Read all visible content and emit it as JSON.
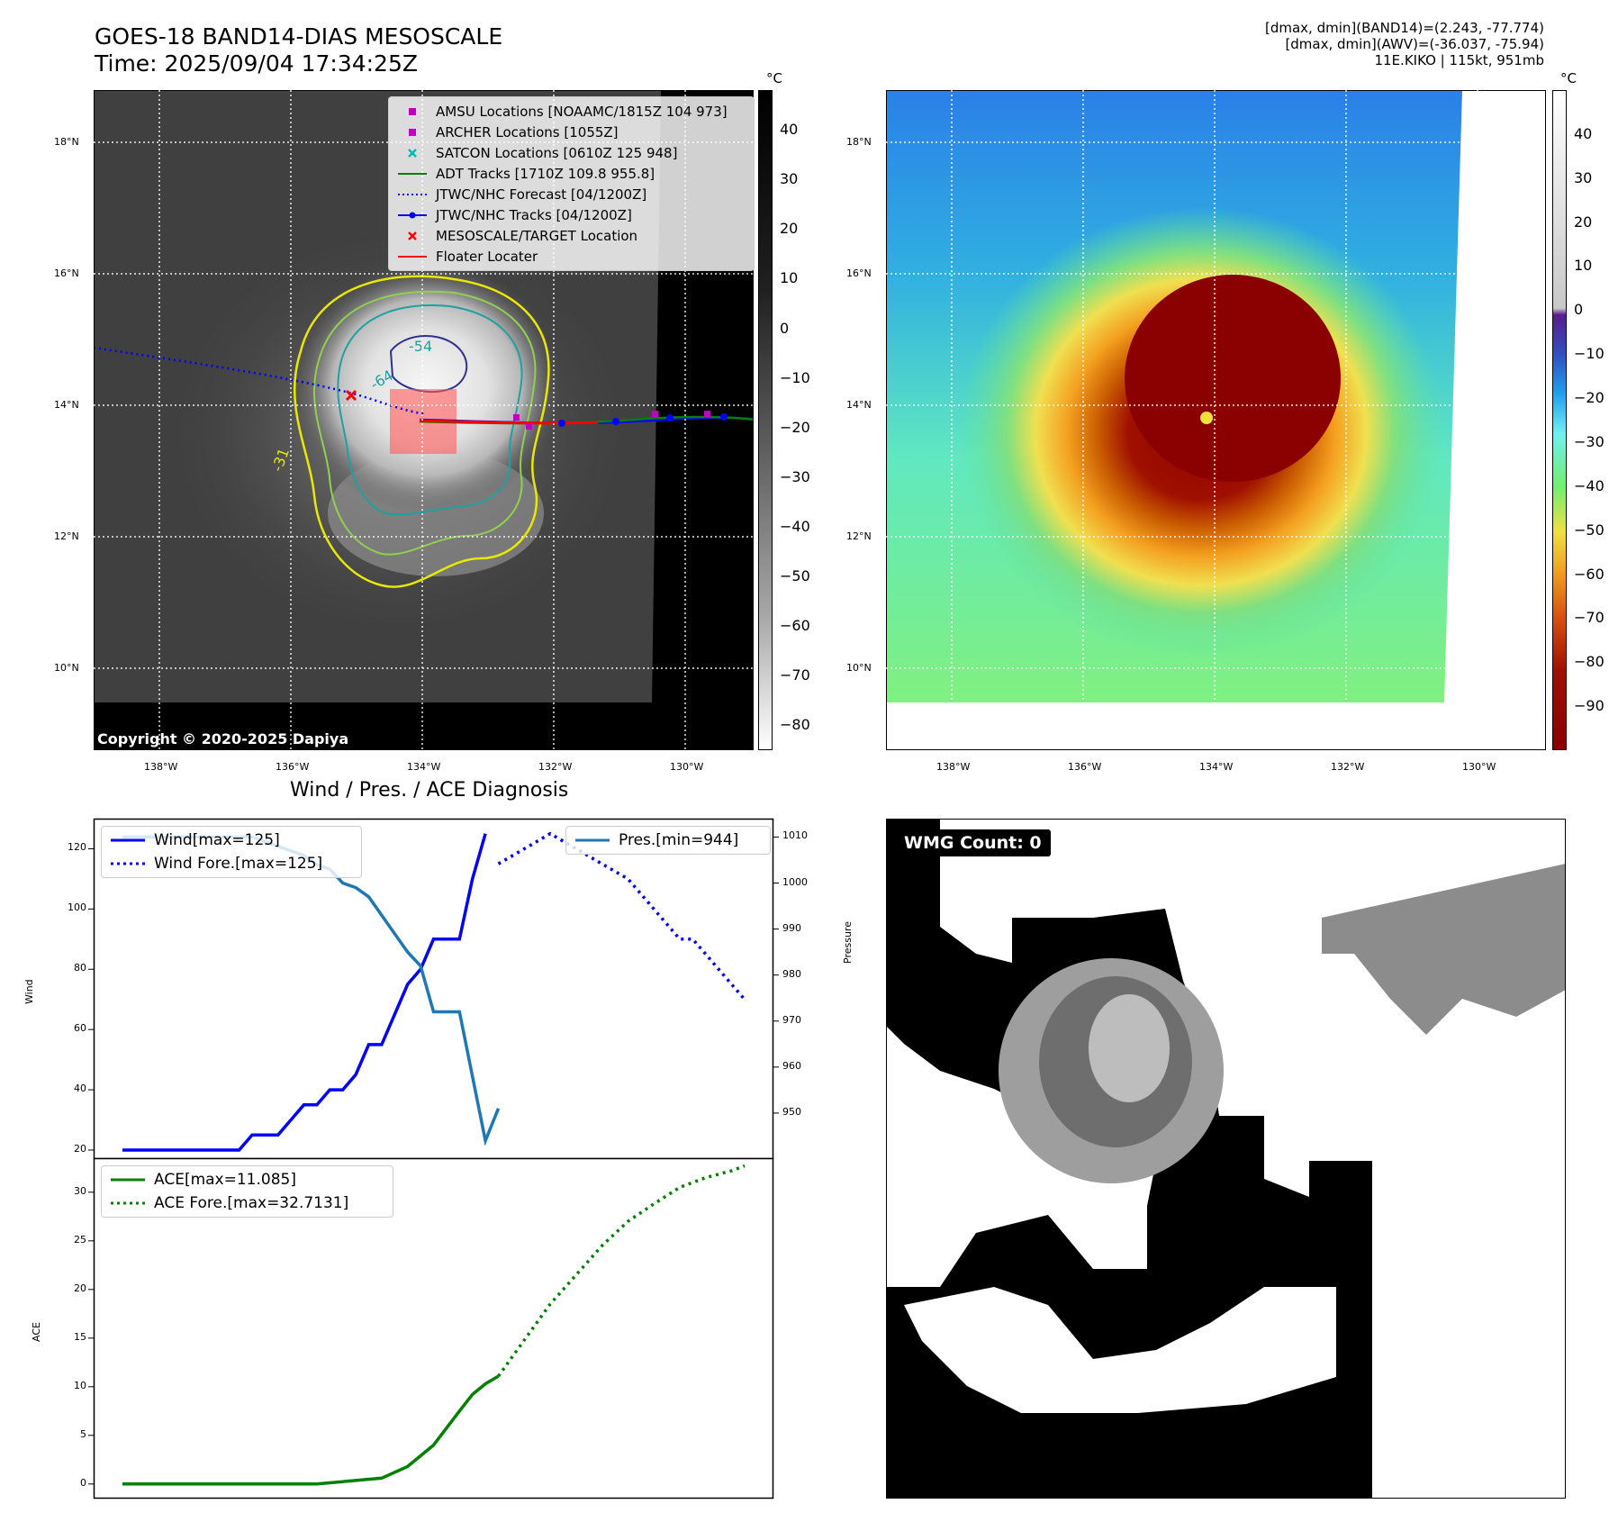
{
  "header": {
    "title_line1": "GOES-18 BAND14-DIAS MESOSCALE",
    "title_line2": "Time: 2025/09/04 17:34:25Z",
    "info_line1": "[dmax, dmin](BAND14)=(2.243, -77.774)",
    "info_line2": "[dmax, dmin](AWV)=(-36.037, -75.94)",
    "info_line3": "11E.KIKO | 115kt, 951mb"
  },
  "map": {
    "lat_ticks": [
      "18°N",
      "16°N",
      "14°N",
      "12°N",
      "10°N"
    ],
    "lon_ticks": [
      "138°W",
      "136°W",
      "134°W",
      "132°W",
      "130°W"
    ],
    "contour_labels": [
      "-54",
      "-64",
      "-31"
    ],
    "copyright": "Copyright © 2020-2025 Dapiya",
    "legend": [
      {
        "label": "AMSU Locations [NOAAMC/1815Z 104 973]",
        "color": "#c000c0",
        "marker": "square"
      },
      {
        "label": "ARCHER Locations [1055Z]",
        "color": "#c000c0",
        "marker": "square"
      },
      {
        "label": "SATCON Locations [0610Z 125 948]",
        "color": "#00b8b8",
        "marker": "x"
      },
      {
        "label": "ADT Tracks [1710Z 109.8 955.8]",
        "color": "#008000",
        "marker": "line"
      },
      {
        "label": "JTWC/NHC Forecast [04/1200Z]",
        "color": "#0000ff",
        "marker": "dotted"
      },
      {
        "label": "JTWC/NHC Tracks [04/1200Z]",
        "color": "#0000ff",
        "marker": "line-dot"
      },
      {
        "label": "MESOSCALE/TARGET Location",
        "color": "#ff0000",
        "marker": "x"
      },
      {
        "label": "Floater Locater",
        "color": "#ff0000",
        "marker": "line"
      }
    ]
  },
  "colorbar_gray": {
    "unit": "°C",
    "ticks": [
      "40",
      "30",
      "20",
      "10",
      "0",
      "−10",
      "−20",
      "−30",
      "−40",
      "−50",
      "−60",
      "−70",
      "−80"
    ]
  },
  "colorbar_color": {
    "unit": "°C",
    "ticks": [
      "40",
      "30",
      "20",
      "10",
      "0",
      "−10",
      "−20",
      "−30",
      "−40",
      "−50",
      "−60",
      "−70",
      "−80",
      "−90"
    ]
  },
  "wmg": {
    "label": "WMG Count: 0"
  },
  "chart_data": [
    {
      "type": "line",
      "title": "Wind / Pres. / ACE Diagnosis",
      "ylabel": "Wind",
      "ylabel_right": "Pressure",
      "ylim": [
        17,
        130
      ],
      "ylim_right": [
        940,
        1014
      ],
      "yticks": [
        20,
        40,
        60,
        80,
        100,
        120
      ],
      "yticks_right": [
        950,
        960,
        970,
        980,
        990,
        1000,
        1010
      ],
      "series": [
        {
          "name": "Wind[max=125]",
          "color": "#0000ff",
          "style": "solid",
          "axis": "left",
          "x": [
            0,
            1,
            2,
            3,
            4,
            5,
            6,
            7,
            8,
            9,
            10,
            11,
            12,
            13,
            14,
            15,
            16,
            17,
            18,
            19,
            20,
            21,
            22,
            23,
            24,
            25,
            26,
            27,
            28
          ],
          "y": [
            20,
            20,
            20,
            20,
            20,
            20,
            20,
            20,
            20,
            20,
            25,
            25,
            25,
            30,
            35,
            35,
            40,
            40,
            45,
            55,
            55,
            65,
            75,
            80,
            90,
            90,
            90,
            110,
            125
          ]
        },
        {
          "name": "Wind Fore.[max=125]",
          "color": "#0000ff",
          "style": "dotted",
          "axis": "left",
          "x": [
            29,
            31,
            33,
            35,
            37,
            39,
            40,
            41,
            42,
            43,
            44,
            45,
            46,
            47,
            48
          ],
          "y": [
            115,
            120,
            125,
            120,
            115,
            110,
            105,
            100,
            95,
            90,
            90,
            85,
            80,
            75,
            70
          ]
        },
        {
          "name": "Pres.[min=944]",
          "color": "#1f77b4",
          "style": "solid",
          "axis": "right",
          "x": [
            0,
            2,
            4,
            6,
            8,
            10,
            12,
            13,
            14,
            15,
            16,
            17,
            18,
            19,
            20,
            21,
            22,
            23,
            24,
            25,
            26,
            27,
            28,
            29
          ],
          "y": [
            1010,
            1010,
            1010,
            1010,
            1010,
            1010,
            1008,
            1007,
            1006,
            1004,
            1003,
            1000,
            999,
            997,
            993,
            989,
            985,
            982,
            972,
            972,
            972,
            958,
            944,
            951
          ]
        }
      ]
    },
    {
      "type": "line",
      "ylabel": "ACE",
      "ylim": [
        -1.5,
        33.5
      ],
      "yticks": [
        0,
        5,
        10,
        15,
        20,
        25,
        30
      ],
      "series": [
        {
          "name": "ACE[max=11.085]",
          "color": "#008000",
          "style": "solid",
          "x": [
            0,
            10,
            15,
            20,
            22,
            24,
            26,
            27,
            28,
            29
          ],
          "y": [
            0,
            0,
            0,
            0.6,
            1.8,
            4.0,
            7.5,
            9.2,
            10.3,
            11.085
          ]
        },
        {
          "name": "ACE Fore.[max=32.7131]",
          "color": "#008000",
          "style": "dotted",
          "x": [
            29,
            31,
            33,
            35,
            37,
            39,
            41,
            43,
            45,
            47,
            48
          ],
          "y": [
            11.085,
            14.8,
            18.5,
            21.5,
            24.5,
            27.0,
            28.8,
            30.5,
            31.5,
            32.2,
            32.7131
          ]
        }
      ]
    }
  ]
}
